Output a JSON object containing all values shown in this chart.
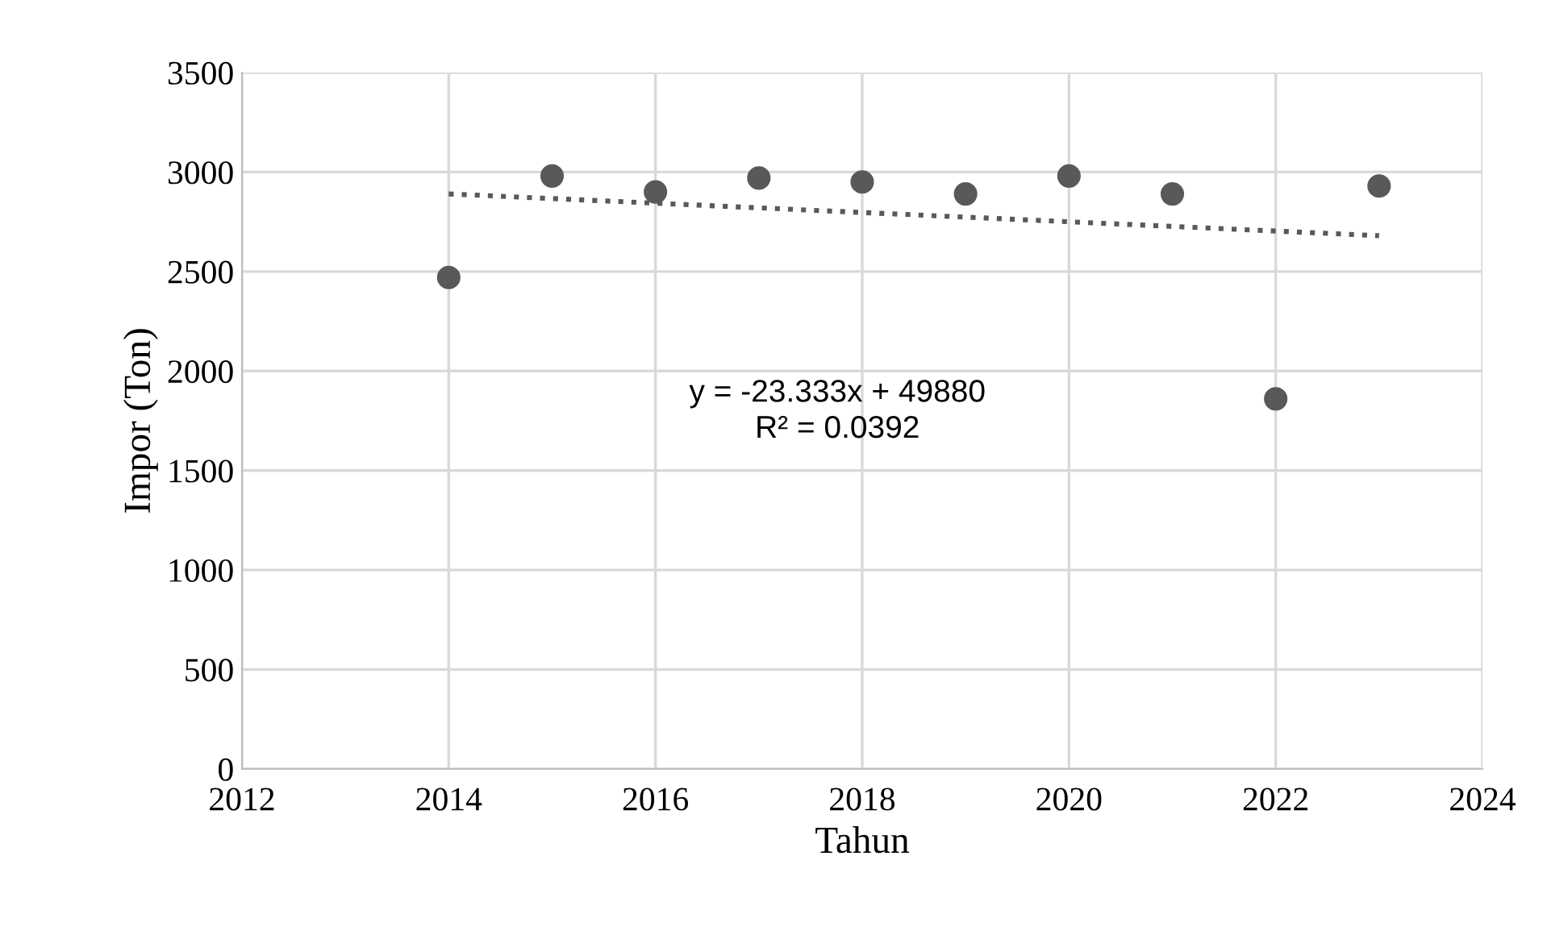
{
  "chart_data": {
    "type": "scatter",
    "xlabel": "Tahun",
    "ylabel": "Impor (Ton)",
    "series": [
      {
        "color": "#595959",
        "marker": "circle",
        "x": [
          2014,
          2015,
          2016,
          2017,
          2018,
          2019,
          2020,
          2021,
          2022,
          2023
        ],
        "values": [
          2470,
          2980,
          2900,
          2970,
          2950,
          2890,
          2980,
          2890,
          1860,
          2930
        ]
      },
      {
        "type": "line",
        "color": "#595959",
        "line_style": "dotted",
        "marker": "none",
        "x": [
          2014,
          2023
        ],
        "values": [
          2890,
          2680
        ]
      }
    ],
    "annotations": [
      "y = -23.333x + 49880\nR² = 0.0392"
    ],
    "xlim": [
      2012,
      2024
    ],
    "xticks": [
      2012,
      2014,
      2016,
      2018,
      2020,
      2022,
      2024
    ],
    "ylim": [
      0,
      3500
    ],
    "yticks": [
      0,
      500,
      1000,
      1500,
      2000,
      2500,
      3000,
      3500
    ],
    "grid": true,
    "legend": false
  }
}
